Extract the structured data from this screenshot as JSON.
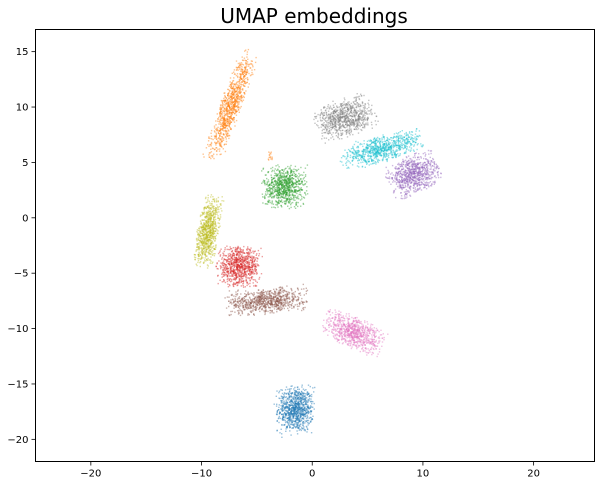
{
  "chart_data": {
    "type": "scatter",
    "title": "UMAP embeddings",
    "xlabel": "",
    "ylabel": "",
    "xlim": [
      -25,
      25.5
    ],
    "ylim": [
      -22,
      17
    ],
    "xticks": [
      -20,
      -10,
      0,
      10,
      20
    ],
    "yticks": [
      -20,
      -15,
      -10,
      -5,
      0,
      5,
      10,
      15
    ],
    "grid": false,
    "legend": "none",
    "clusters": [
      {
        "color": "#1f77b4",
        "center": [
          -1.5,
          -17.3
        ],
        "spread": [
          1.6,
          2.0
        ],
        "angle": 0,
        "count": 900
      },
      {
        "color": "#ff7f0e",
        "center": [
          -7.3,
          10.2
        ],
        "spread": [
          0.9,
          4.8
        ],
        "angle": -20,
        "count": 900
      },
      {
        "color": "#ff7f0e",
        "center": [
          -3.8,
          5.6
        ],
        "spread": [
          0.25,
          0.4
        ],
        "angle": 0,
        "count": 15
      },
      {
        "color": "#2ca02c",
        "center": [
          -2.5,
          2.8
        ],
        "spread": [
          1.9,
          1.8
        ],
        "angle": 0,
        "count": 800
      },
      {
        "color": "#d62728",
        "center": [
          -6.6,
          -4.4
        ],
        "spread": [
          1.9,
          1.7
        ],
        "angle": 0,
        "count": 800
      },
      {
        "color": "#9467bd",
        "center": [
          9.2,
          3.9
        ],
        "spread": [
          2.2,
          1.6
        ],
        "angle": 25,
        "count": 800
      },
      {
        "color": "#8c564b",
        "center": [
          -4.1,
          -7.5
        ],
        "spread": [
          3.4,
          1.1
        ],
        "angle": 5,
        "count": 800
      },
      {
        "color": "#e377c2",
        "center": [
          3.7,
          -10.3
        ],
        "spread": [
          2.7,
          1.3
        ],
        "angle": -25,
        "count": 800
      },
      {
        "color": "#7f7f7f",
        "center": [
          3.0,
          9.0
        ],
        "spread": [
          2.5,
          1.6
        ],
        "angle": 20,
        "count": 800
      },
      {
        "color": "#bcbd22",
        "center": [
          -9.4,
          -1.2
        ],
        "spread": [
          0.9,
          3.0
        ],
        "angle": -10,
        "count": 800
      },
      {
        "color": "#17becf",
        "center": [
          6.3,
          6.2
        ],
        "spread": [
          3.6,
          1.1
        ],
        "angle": 15,
        "count": 800
      }
    ]
  }
}
